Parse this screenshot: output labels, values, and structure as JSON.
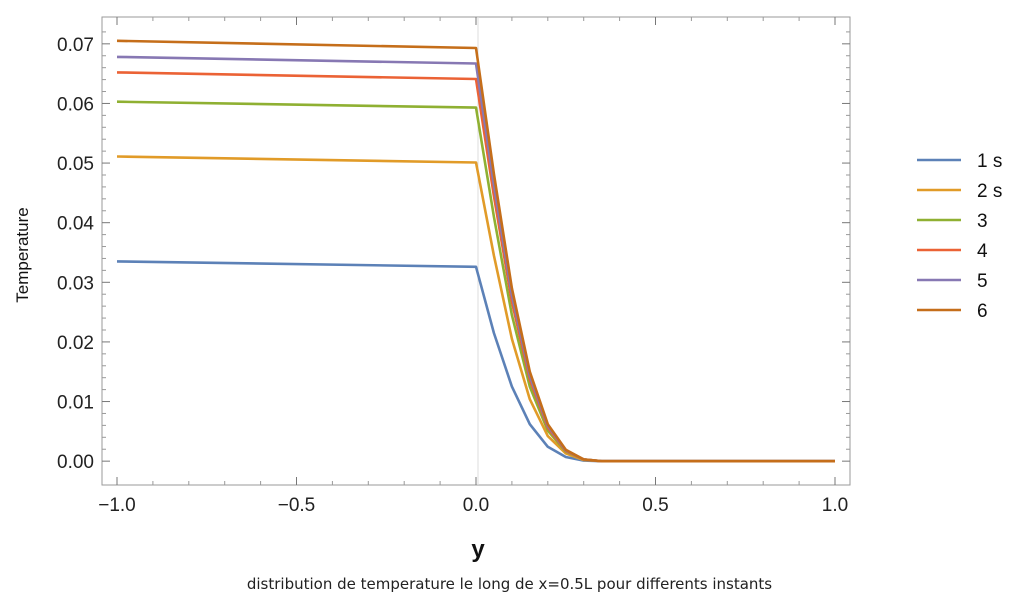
{
  "chart_data": {
    "type": "line",
    "xlabel": "y",
    "ylabel": "Temperature",
    "xlim": [
      -1.0,
      1.0
    ],
    "ylim": [
      -0.004,
      0.0745
    ],
    "x_ticks": [
      "-1.0",
      "-0.5",
      "0.0",
      "0.5",
      "1.0"
    ],
    "x_tick_values": [
      -1.0,
      -0.5,
      0.0,
      0.5,
      1.0
    ],
    "y_ticks": [
      "0.00",
      "0.01",
      "0.02",
      "0.03",
      "0.04",
      "0.05",
      "0.06",
      "0.07"
    ],
    "y_tick_values": [
      0.0,
      0.01,
      0.02,
      0.03,
      0.04,
      0.05,
      0.06,
      0.07
    ],
    "grid": false,
    "legend_position": "right",
    "series": [
      {
        "name": "1 s",
        "color": "#5c81b7",
        "x": [
          -1.0,
          0.0,
          0.05,
          0.1,
          0.15,
          0.2,
          0.25,
          0.3,
          0.35,
          0.5,
          1.0
        ],
        "values": [
          0.0335,
          0.0326,
          0.0215,
          0.0125,
          0.0062,
          0.0024,
          0.0007,
          0.0001,
          0.0,
          0.0,
          0.0
        ]
      },
      {
        "name": "2 s",
        "color": "#e19b28",
        "x": [
          -1.0,
          0.0,
          0.05,
          0.1,
          0.15,
          0.2,
          0.25,
          0.3,
          0.35,
          0.5,
          1.0
        ],
        "values": [
          0.0511,
          0.0501,
          0.0345,
          0.0205,
          0.0104,
          0.0042,
          0.0013,
          0.0002,
          0.0,
          0.0,
          0.0
        ]
      },
      {
        "name": "3",
        "color": "#8fb032",
        "x": [
          -1.0,
          0.0,
          0.05,
          0.1,
          0.15,
          0.2,
          0.25,
          0.3,
          0.35,
          0.5,
          1.0
        ],
        "values": [
          0.0603,
          0.0593,
          0.041,
          0.0245,
          0.0125,
          0.0051,
          0.0016,
          0.0003,
          0.0,
          0.0,
          0.0
        ]
      },
      {
        "name": "4",
        "color": "#eb6235",
        "x": [
          -1.0,
          0.0,
          0.05,
          0.1,
          0.15,
          0.2,
          0.25,
          0.3,
          0.35,
          0.5,
          1.0
        ],
        "values": [
          0.0652,
          0.0641,
          0.0445,
          0.0267,
          0.0137,
          0.0056,
          0.0017,
          0.0003,
          0.0,
          0.0,
          0.0
        ]
      },
      {
        "name": "5",
        "color": "#8778b3",
        "x": [
          -1.0,
          0.0,
          0.05,
          0.1,
          0.15,
          0.2,
          0.25,
          0.3,
          0.35,
          0.5,
          1.0
        ],
        "values": [
          0.0678,
          0.0667,
          0.0463,
          0.0278,
          0.0143,
          0.0059,
          0.0018,
          0.0003,
          0.0,
          0.0,
          0.0
        ]
      },
      {
        "name": "6",
        "color": "#c56e1a",
        "x": [
          -1.0,
          0.0,
          0.05,
          0.1,
          0.15,
          0.2,
          0.25,
          0.3,
          0.35,
          0.5,
          1.0
        ],
        "values": [
          0.0705,
          0.0693,
          0.0482,
          0.029,
          0.015,
          0.0062,
          0.0019,
          0.0003,
          0.0,
          0.0,
          0.0
        ]
      }
    ],
    "caption": "distribution de temperature le long de x=0.5L pour differents instants"
  }
}
